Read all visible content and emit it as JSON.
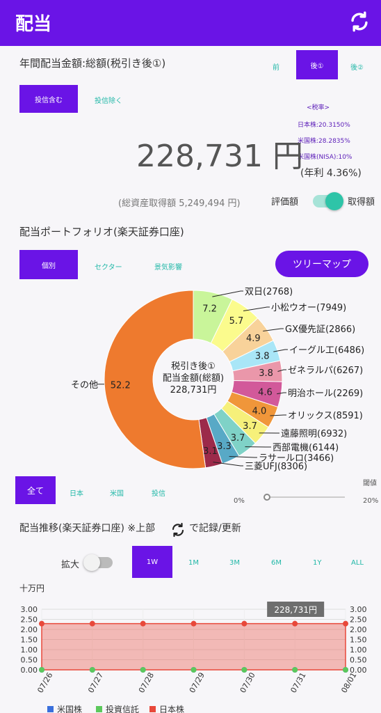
{
  "appbar": {
    "title": "配当"
  },
  "annual": {
    "title": "年間配当金額:総額(税引き後①)",
    "tax_tabs": [
      "前",
      "後①",
      "後②"
    ],
    "filter_tabs": [
      "投信含む",
      "投信除く"
    ],
    "tax_rate_title": "<税率>",
    "tax_rates": [
      "日本株:20.3150%",
      "米国株:28.2835%",
      "米国株(NISA):10%"
    ],
    "amount": "228,731 円",
    "yield": "(年利 4.36%)",
    "total_cost": "(総資産取得額 5,249,494 円)",
    "toggle_left": "評価額",
    "toggle_right": "取得額"
  },
  "portfolio": {
    "title": "配当ポートフォリオ(楽天証券口座)",
    "tabs": [
      "個別",
      "セクター",
      "景気影響"
    ],
    "treemap_button": "ツリーマップ",
    "center_lines": [
      "税引き後①",
      "配当金額(総額)",
      "228,731円"
    ],
    "filter_tabs": [
      "全て",
      "日本",
      "米国",
      "投信"
    ],
    "threshold_label": "閾値",
    "slider_min": "0%",
    "slider_max": "20%",
    "slider_value": 0.3
  },
  "chart_data": [
    {
      "type": "pie",
      "slices": [
        {
          "name": "双日(2768)",
          "value": 7.2,
          "color": "#c9f59a"
        },
        {
          "name": "小松ウオー(7949)",
          "value": 5.7,
          "color": "#fbfb8d"
        },
        {
          "name": "GX優先証(2866)",
          "value": 4.9,
          "color": "#f8d29a"
        },
        {
          "name": "イーグル工(6486)",
          "value": 3.8,
          "color": "#a9e6f7"
        },
        {
          "name": "ゼネラルパ(6267)",
          "value": 3.8,
          "color": "#ea97aa"
        },
        {
          "name": "明治ホール(2269)",
          "value": 4.6,
          "color": "#d2599a"
        },
        {
          "name": "オリックス(8591)",
          "value": 4.0,
          "color": "#f0963a"
        },
        {
          "name": "遠藤照明(6932)",
          "value": 3.7,
          "color": "#f6f07a"
        },
        {
          "name": "西部電機(6144)",
          "value": 3.7,
          "color": "#7fd2c7"
        },
        {
          "name": "ラサールロ(3466)",
          "value": 3.3,
          "color": "#58a9c6"
        },
        {
          "name": "三菱UFJ(8306)",
          "value": 3.1,
          "color": "#9c2a4a"
        },
        {
          "name": "その他",
          "value": 52.2,
          "color": "#ee7a2e"
        }
      ]
    },
    {
      "type": "area",
      "title": "配当推移(楽天証券口座) ※上部",
      "title_suffix": "で記録/更新",
      "ylabel": "十万円",
      "x": [
        "07/26",
        "07/27",
        "07/28",
        "07/29",
        "07/30",
        "07/31",
        "08/01"
      ],
      "y_ticks": [
        "0.00",
        "0.50",
        "1.00",
        "1.50",
        "2.00",
        "2.50",
        "3.00"
      ],
      "ylim": [
        0,
        3.0
      ],
      "series": [
        {
          "name": "米国株",
          "color": "#3a6fdc",
          "values": [
            0,
            0,
            0,
            0,
            0,
            0,
            0
          ]
        },
        {
          "name": "投資信託",
          "color": "#5cc85c",
          "values": [
            0,
            0,
            0,
            0,
            0,
            0,
            0
          ]
        },
        {
          "name": "日本株",
          "color": "#e8483a",
          "values": [
            2.28731,
            2.28731,
            2.28731,
            2.28731,
            2.28731,
            2.28731,
            2.28731
          ]
        }
      ],
      "tooltip": "228,731円"
    }
  ],
  "trend": {
    "zoom_label": "拡大",
    "period_tabs": [
      "1W",
      "1M",
      "3M",
      "6M",
      "1Y",
      "ALL"
    ]
  }
}
